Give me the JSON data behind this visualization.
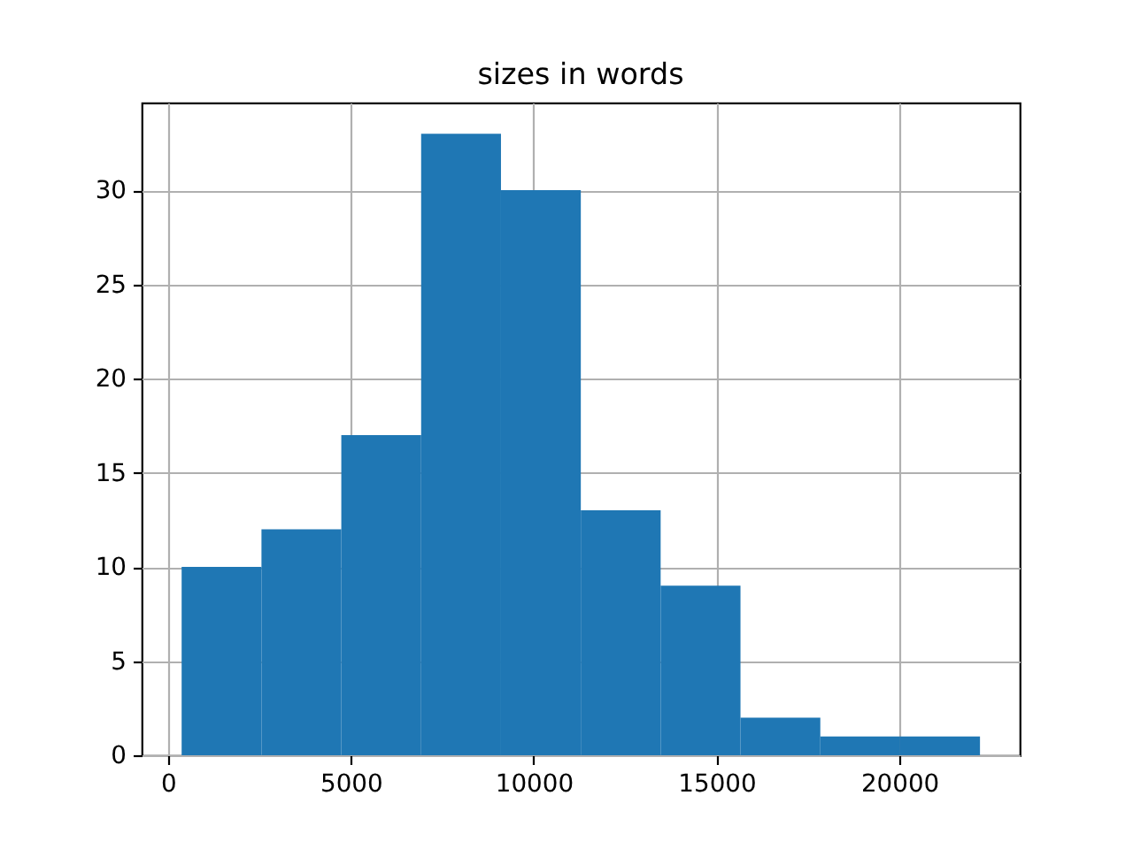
{
  "chart_data": {
    "type": "histogram",
    "title": "sizes in words",
    "bins": [
      374,
      2557,
      4740,
      6923,
      9106,
      11289,
      13472,
      15655,
      17838,
      20021,
      22204
    ],
    "values": [
      10,
      12,
      17,
      33,
      30,
      13,
      9,
      2,
      1,
      1
    ],
    "color": "#1f77b4",
    "xlim": [
      -720,
      23290
    ],
    "ylim": [
      0,
      34.65
    ],
    "xticks": [
      0,
      5000,
      10000,
      15000,
      20000
    ],
    "yticks": [
      0,
      5,
      10,
      15,
      20,
      25,
      30
    ],
    "grid": true
  }
}
